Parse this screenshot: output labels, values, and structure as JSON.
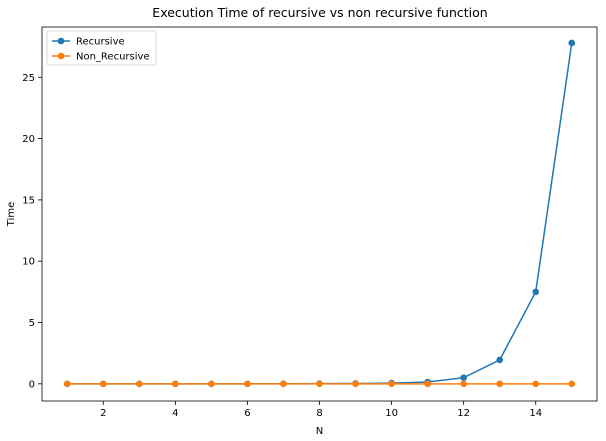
{
  "chart_data": {
    "type": "line",
    "title": "Execution Time of recursive vs non recursive function",
    "xlabel": "N",
    "ylabel": "Time",
    "xlim": [
      0.3,
      15.7
    ],
    "ylim": [
      -1.4,
      29.1
    ],
    "xticks": [
      2,
      4,
      6,
      8,
      10,
      12,
      14
    ],
    "yticks": [
      0,
      5,
      10,
      15,
      20,
      25
    ],
    "grid": false,
    "legend_position": "top-left",
    "x": [
      1,
      2,
      3,
      4,
      5,
      6,
      7,
      8,
      9,
      10,
      11,
      12,
      13,
      14,
      15
    ],
    "series": [
      {
        "name": "Recursive",
        "color": "#1f77b4",
        "marker": "circle",
        "values": [
          0.0,
          0.0,
          0.0,
          0.0,
          0.0,
          0.0,
          0.01,
          0.02,
          0.03,
          0.06,
          0.15,
          0.5,
          1.95,
          7.5,
          27.8
        ]
      },
      {
        "name": "Non_Recursive",
        "color": "#ff7f0e",
        "marker": "circle",
        "values": [
          0,
          0,
          0,
          0,
          0,
          0,
          0,
          0,
          0,
          0,
          0,
          0,
          0,
          0,
          0
        ]
      }
    ]
  }
}
